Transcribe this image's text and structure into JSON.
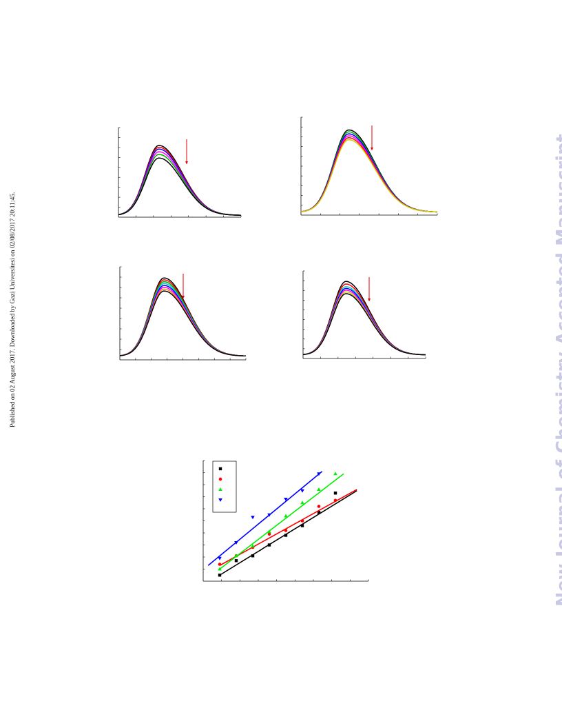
{
  "side_note": "Published on 02 August 2017. Downloaded by Gazi Universitesi on 02/08/2017 20:11:45.",
  "watermark": "New Journal of Chemistry Accepted Manuscript",
  "chart_data": [
    {
      "type": "line",
      "panel": "top-left",
      "peak_x": 0.33,
      "y_min": 0.02,
      "series": [
        {
          "color": "#000000",
          "peak": 0.8
        },
        {
          "color": "#ff0000",
          "peak": 0.78
        },
        {
          "color": "#0000ff",
          "peak": 0.76
        },
        {
          "color": "#ff00ff",
          "peak": 0.73
        },
        {
          "color": "#00aa00",
          "peak": 0.7
        },
        {
          "color": "#000000",
          "peak": 0.66
        }
      ],
      "arrow": "down"
    },
    {
      "type": "line",
      "panel": "top-right",
      "peak_x": 0.35,
      "y_min": 0.03,
      "series": [
        {
          "color": "#000000",
          "peak": 0.87
        },
        {
          "color": "#00aa00",
          "peak": 0.85
        },
        {
          "color": "#0000ff",
          "peak": 0.83
        },
        {
          "color": "#ff00ff",
          "peak": 0.81
        },
        {
          "color": "#ff0000",
          "peak": 0.79
        },
        {
          "color": "#cccc00",
          "peak": 0.77
        }
      ],
      "arrow": "down"
    },
    {
      "type": "line",
      "panel": "bottom-left",
      "peak_x": 0.35,
      "y_min": 0.04,
      "series": [
        {
          "color": "#000000",
          "peak": 0.88
        },
        {
          "color": "#ff0000",
          "peak": 0.86
        },
        {
          "color": "#00aa00",
          "peak": 0.84
        },
        {
          "color": "#00cccc",
          "peak": 0.82
        },
        {
          "color": "#0000ff",
          "peak": 0.8
        },
        {
          "color": "#ff00ff",
          "peak": 0.78
        },
        {
          "color": "#ff8800",
          "peak": 0.76
        },
        {
          "color": "#000000",
          "peak": 0.74
        }
      ],
      "arrow": "down"
    },
    {
      "type": "line",
      "panel": "bottom-right",
      "peak_x": 0.35,
      "y_min": 0.04,
      "series": [
        {
          "color": "#000000",
          "peak": 0.88
        },
        {
          "color": "#ff0000",
          "peak": 0.85
        },
        {
          "color": "#00cccc",
          "peak": 0.82
        },
        {
          "color": "#0000ff",
          "peak": 0.8
        },
        {
          "color": "#ff00ff",
          "peak": 0.78
        },
        {
          "color": "#cccc00",
          "peak": 0.76
        },
        {
          "color": "#000000",
          "peak": 0.74
        }
      ],
      "arrow": "down"
    },
    {
      "type": "scatter",
      "panel": "bottom-center",
      "xlim": [
        0,
        10
      ],
      "ylim": [
        0,
        10
      ],
      "legend": "top-left",
      "series": [
        {
          "color": "#000000",
          "marker": "square",
          "points": [
            [
              1,
              0.5
            ],
            [
              2,
              1.7
            ],
            [
              3,
              2.1
            ],
            [
              4,
              3.0
            ],
            [
              5,
              3.8
            ],
            [
              6,
              4.6
            ],
            [
              7,
              5.7
            ],
            [
              8,
              7.3
            ]
          ],
          "fit": [
            [
              1,
              0.5
            ],
            [
              9.3,
              7.5
            ]
          ]
        },
        {
          "color": "#ff0000",
          "marker": "circle",
          "points": [
            [
              1,
              1.4
            ],
            [
              2,
              2.1
            ],
            [
              3,
              2.8
            ],
            [
              4,
              3.9
            ],
            [
              5,
              4.2
            ],
            [
              6,
              5.0
            ],
            [
              7,
              6.2
            ],
            [
              8,
              6.7
            ]
          ],
          "fit": [
            [
              1,
              1.3
            ],
            [
              9.3,
              7.6
            ]
          ]
        },
        {
          "color": "#00ee00",
          "marker": "triangle-up",
          "points": [
            [
              1,
              1.0
            ],
            [
              2,
              2.1
            ],
            [
              3,
              2.9
            ],
            [
              4,
              4.1
            ],
            [
              5,
              5.4
            ],
            [
              6,
              6.5
            ],
            [
              7,
              7.6
            ],
            [
              8,
              8.9
            ]
          ],
          "fit": [
            [
              1,
              1.0
            ],
            [
              8.5,
              8.9
            ]
          ]
        },
        {
          "color": "#0000ff",
          "marker": "triangle-down",
          "points": [
            [
              1,
              1.9
            ],
            [
              2,
              3.2
            ],
            [
              3,
              5.3
            ],
            [
              4,
              5.5
            ],
            [
              5,
              6.8
            ],
            [
              6,
              7.5
            ],
            [
              7,
              8.9
            ]
          ],
          "fit": [
            [
              0.3,
              1.3
            ],
            [
              7.2,
              9.1
            ]
          ]
        }
      ]
    }
  ]
}
